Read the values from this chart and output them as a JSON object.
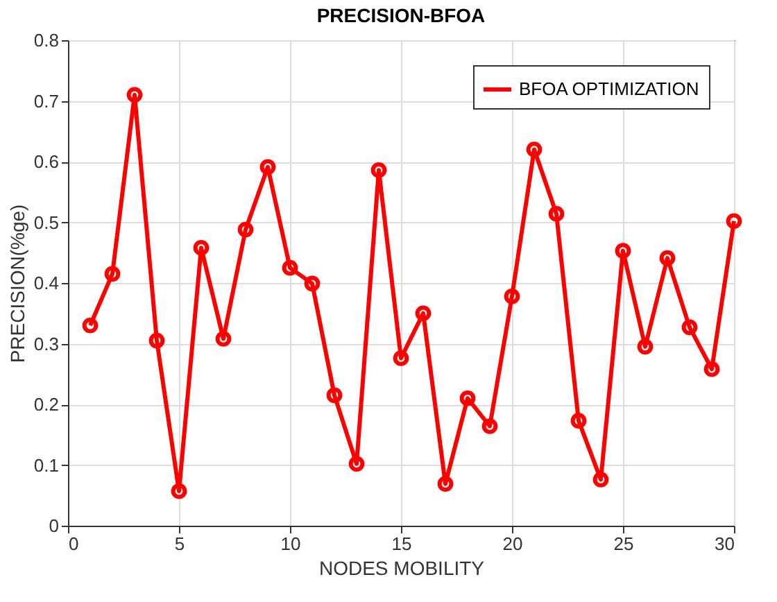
{
  "chart_data": {
    "type": "line",
    "title": "PRECISION-BFOA",
    "xlabel": "NODES MOBILITY",
    "ylabel": "PRECISION(%ge)",
    "x": [
      1,
      2,
      3,
      4,
      5,
      6,
      7,
      8,
      9,
      10,
      11,
      12,
      13,
      14,
      15,
      16,
      17,
      18,
      19,
      20,
      21,
      22,
      23,
      24,
      25,
      26,
      27,
      28,
      29,
      30
    ],
    "series": [
      {
        "name": "BFOA OPTIMIZATION",
        "color": "#ff0000",
        "values": [
          0.33,
          0.415,
          0.71,
          0.305,
          0.057,
          0.458,
          0.308,
          0.488,
          0.591,
          0.425,
          0.399,
          0.215,
          0.102,
          0.586,
          0.276,
          0.35,
          0.069,
          0.21,
          0.164,
          0.378,
          0.62,
          0.514,
          0.173,
          0.076,
          0.453,
          0.295,
          0.441,
          0.327,
          0.258,
          0.502
        ]
      }
    ],
    "xlim": [
      0,
      30
    ],
    "xticks": [
      0,
      5,
      10,
      15,
      20,
      25,
      30
    ],
    "ylim": [
      0,
      0.8
    ],
    "yticks": [
      0,
      0.1,
      0.2,
      0.3,
      0.4,
      0.5,
      0.6,
      0.7,
      0.8
    ],
    "grid": true,
    "legend": "top right",
    "marker": "circle",
    "line_style": "solid"
  }
}
